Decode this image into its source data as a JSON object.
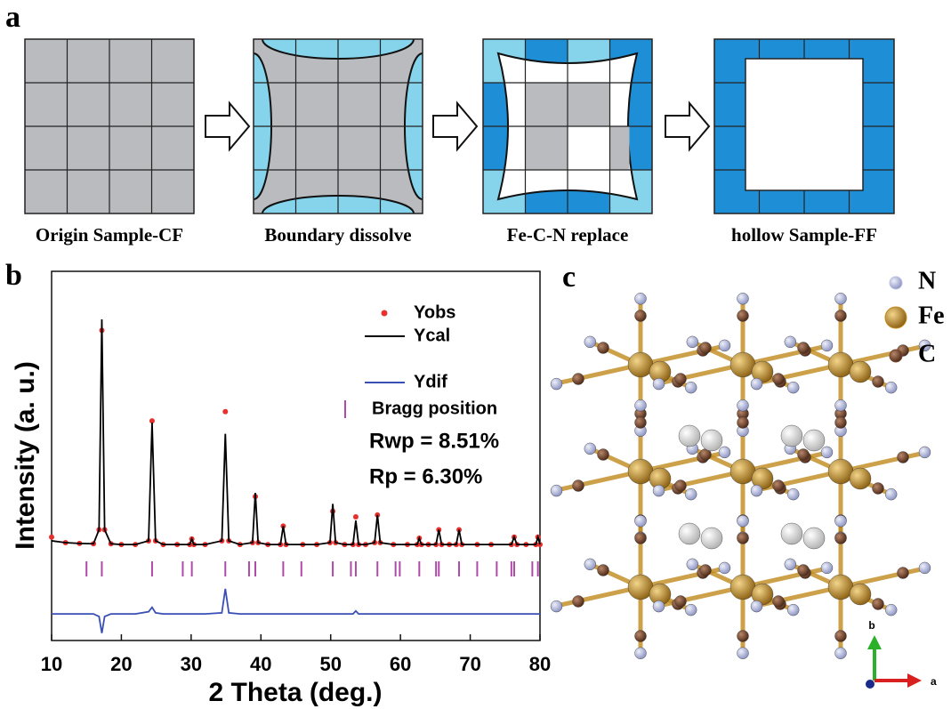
{
  "panel_a": {
    "label": "a",
    "steps": [
      "Origin Sample-CF",
      "Boundary dissolve",
      "Fe-C-N replace",
      "hollow Sample-FF"
    ]
  },
  "chart_data": {
    "type": "line",
    "panel_label": "b",
    "xlabel": "2 Theta (deg.)",
    "ylabel": "Intensity (a. u.)",
    "xlim": [
      10,
      80
    ],
    "xticks": [
      10,
      20,
      30,
      40,
      50,
      60,
      70,
      80
    ],
    "ylim": [
      0,
      100
    ],
    "x": [
      10,
      12,
      14,
      16,
      16.8,
      17.2,
      17.6,
      18.5,
      20,
      22,
      23.9,
      24.4,
      24.9,
      26,
      28,
      29.8,
      30.1,
      30.4,
      32,
      34.4,
      34.9,
      35.4,
      37,
      38.8,
      39.2,
      39.6,
      41,
      42.8,
      43.2,
      43.6,
      46,
      48,
      49.9,
      50.3,
      50.7,
      52,
      53.2,
      53.6,
      54,
      55,
      56.3,
      56.7,
      57.1,
      59,
      61,
      62.4,
      62.7,
      63,
      64,
      65.1,
      65.5,
      65.9,
      67,
      68,
      68.4,
      68.8,
      71,
      73,
      75.9,
      76.3,
      76.7,
      78,
      79.4,
      79.7,
      80
    ],
    "series": [
      {
        "name": "Yobs",
        "color": "#e8312f",
        "style": "dots",
        "values": [
          28,
          26.5,
          26.3,
          26.2,
          30,
          84,
          30,
          26.2,
          26,
          26,
          27,
          59.5,
          27,
          26,
          26,
          26,
          27.5,
          26,
          26,
          27,
          62,
          27,
          26,
          26.5,
          39,
          26.5,
          26,
          26,
          31,
          26,
          26,
          26,
          26.5,
          35,
          26.5,
          26,
          26,
          33.5,
          26,
          26,
          26.5,
          34,
          26.5,
          26,
          26,
          26,
          27.7,
          26,
          26,
          26,
          30,
          26,
          26,
          26,
          30,
          26,
          26,
          26,
          26,
          28,
          26,
          26,
          26,
          28,
          26
        ]
      },
      {
        "name": "Ycal",
        "color": "#000000",
        "style": "line",
        "values": [
          27,
          26.5,
          26.3,
          26.2,
          30,
          87,
          30,
          26.2,
          26,
          26,
          27,
          59,
          27,
          26,
          26,
          26,
          27.5,
          26,
          26,
          27,
          56,
          27,
          26,
          26.5,
          40,
          26.5,
          26,
          26,
          31,
          26,
          26,
          26,
          26.5,
          37,
          26.5,
          26,
          26,
          32.5,
          26,
          26,
          26.5,
          34,
          26.5,
          26,
          26,
          26,
          27.7,
          26,
          26,
          26,
          30,
          26,
          26,
          26,
          30,
          26,
          26,
          26,
          26,
          28,
          26,
          26,
          26,
          28,
          26
        ]
      },
      {
        "name": "Ydif",
        "color": "#3a4fb5",
        "style": "line",
        "values": [
          7.2,
          7.2,
          7.2,
          7.2,
          6.5,
          2,
          6.5,
          7.2,
          7.2,
          7.2,
          7.8,
          9,
          7.5,
          7.2,
          7.2,
          7.2,
          7.2,
          7.2,
          7.2,
          7.5,
          14,
          7.5,
          7.2,
          7.2,
          7.2,
          7.2,
          7.2,
          7.2,
          7.2,
          7.2,
          7.2,
          7.2,
          7.2,
          7.2,
          7.2,
          7.2,
          7.2,
          8,
          7.2,
          7.2,
          7.2,
          7.2,
          7.2,
          7.2,
          7.2,
          7.2,
          7.2,
          7.2,
          7.2,
          7.2,
          7.2,
          7.2,
          7.2,
          7.2,
          7.2,
          7.2,
          7.2,
          7.2,
          7.2,
          7.2,
          7.2,
          7.2,
          7.2,
          7.2,
          7.2
        ]
      }
    ],
    "bragg": {
      "name": "Bragg position",
      "color": "#b04aa8",
      "x": [
        15,
        17.2,
        24.4,
        28.8,
        30.1,
        34.9,
        38.3,
        39.2,
        43.2,
        45.8,
        50.3,
        52.9,
        53.6,
        56.7,
        59.3,
        59.9,
        62.7,
        65.1,
        65.5,
        68.4,
        71,
        73.8,
        75.9,
        76.3,
        78.9,
        79.7
      ]
    },
    "annotations": [
      "Rwp = 8.51%",
      "Rp = 6.30%"
    ]
  },
  "panel_c": {
    "label": "c",
    "legend": [
      {
        "name": "N",
        "color": "#b8c0e0"
      },
      {
        "name": "Fe",
        "color": "#c08a1e"
      },
      {
        "name": "C",
        "color": "#7a4a2e"
      }
    ],
    "axes": [
      "b",
      "a"
    ]
  }
}
